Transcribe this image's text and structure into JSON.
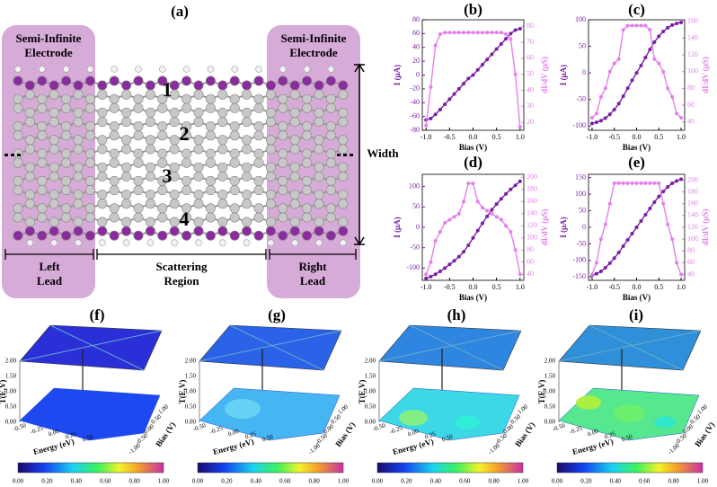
{
  "diagram": {
    "label": "(a)",
    "left_electrode": [
      "Semi-Infinite",
      "Electrode"
    ],
    "right_electrode": [
      "Semi-Infinite",
      "Electrode"
    ],
    "regions": [
      "1",
      "2",
      "3",
      "4"
    ],
    "width": "Width",
    "left_lead": [
      "Left",
      "Lead"
    ],
    "scattering": [
      "Scattering",
      "Region"
    ],
    "right_lead": [
      "Right",
      "Lead"
    ]
  },
  "chart_data": [
    {
      "type": "line",
      "title": "(b)",
      "x_label": "Bias (V)",
      "y_label": "I (μA)",
      "y2_label": "dI/dV (μS)",
      "x": [
        -1,
        -0.9,
        -0.8,
        -0.7,
        -0.6,
        -0.5,
        -0.4,
        -0.3,
        -0.2,
        -0.1,
        0,
        0.1,
        0.2,
        0.3,
        0.4,
        0.5,
        0.6,
        0.7,
        0.8,
        0.9,
        1
      ],
      "xlim": [
        -1.08,
        1.08
      ],
      "xticks": [
        {
          "value": -1,
          "label": "-1.0"
        },
        -0.5,
        {
          "value": 0,
          "label": "0.0"
        },
        0.5,
        {
          "value": 1,
          "label": "1.0"
        }
      ],
      "ylim": [
        -80,
        80
      ],
      "yticks": [
        -80,
        -60,
        -40,
        -20,
        0,
        20,
        40,
        60,
        80
      ],
      "y2lim": [
        15,
        84
      ],
      "y2ticks": [
        20,
        30,
        40,
        50,
        60,
        70,
        80
      ],
      "series": [
        {
          "color": "#7a1fa2",
          "values": [
            -65,
            -63,
            -57,
            -50,
            -42.5,
            -35,
            -27.5,
            -20,
            -12.5,
            -5,
            0,
            7.5,
            15,
            22.5,
            30,
            37.5,
            45,
            52.5,
            60,
            65,
            67
          ]
        },
        {
          "color": "#e480ea",
          "axis": "y2",
          "values": [
            18,
            42,
            68,
            75,
            76,
            76,
            76,
            76,
            76,
            76,
            76,
            76,
            76,
            76,
            76,
            76,
            76,
            75,
            72,
            50,
            17
          ]
        }
      ]
    },
    {
      "type": "line",
      "title": "(c)",
      "x_label": "Bias (V)",
      "y_label": "I (μA)",
      "y2_label": "dI/dV (μS)",
      "x": [
        -1,
        -0.9,
        -0.8,
        -0.7,
        -0.6,
        -0.5,
        -0.4,
        -0.3,
        -0.2,
        -0.1,
        0,
        0.1,
        0.2,
        0.3,
        0.4,
        0.5,
        0.6,
        0.7,
        0.8,
        0.9,
        1
      ],
      "xlim": [
        -1.08,
        1.08
      ],
      "xticks": [
        {
          "value": -1,
          "label": "-1.0"
        },
        -0.5,
        {
          "value": 0,
          "label": "0.0"
        },
        0.5,
        {
          "value": 1,
          "label": "1.0"
        }
      ],
      "ylim": [
        -108,
        100
      ],
      "yticks": [
        -100,
        -50,
        0,
        50,
        100
      ],
      "y2lim": [
        30,
        162
      ],
      "y2ticks": [
        40,
        60,
        80,
        100,
        120,
        140,
        160
      ],
      "series": [
        {
          "color": "#7a1fa2",
          "values": [
            -95,
            -93,
            -90,
            -85,
            -78,
            -69,
            -58,
            -44,
            -29,
            -14,
            0,
            14,
            29,
            44,
            58,
            69,
            78,
            85,
            90,
            93,
            95
          ]
        },
        {
          "color": "#e480ea",
          "axis": "y2",
          "values": [
            45,
            50,
            70,
            80,
            100,
            110,
            115,
            150,
            155,
            155,
            155,
            155,
            155,
            150,
            115,
            110,
            100,
            80,
            70,
            50,
            45
          ]
        }
      ]
    },
    {
      "type": "line",
      "title": "(d)",
      "x_label": "Bias (V)",
      "y_label": "I (μA)",
      "y2_label": "dI/dV (μS)",
      "x": [
        -1,
        -0.9,
        -0.8,
        -0.7,
        -0.6,
        -0.5,
        -0.4,
        -0.3,
        -0.2,
        -0.1,
        0,
        0.1,
        0.2,
        0.3,
        0.4,
        0.5,
        0.6,
        0.7,
        0.8,
        0.9,
        1
      ],
      "xlim": [
        -1.08,
        1.08
      ],
      "xticks": [
        {
          "value": -1,
          "label": "-1.0"
        },
        -0.5,
        {
          "value": 0,
          "label": "0.0"
        },
        0.5,
        {
          "value": 1,
          "label": "1.0"
        }
      ],
      "ylim": [
        -130,
        130
      ],
      "yticks": [
        -100,
        -50,
        0,
        50,
        100
      ],
      "y2lim": [
        30,
        205
      ],
      "y2ticks": [
        40,
        60,
        80,
        100,
        120,
        140,
        160,
        180,
        200
      ],
      "series": [
        {
          "color": "#7a1fa2",
          "values": [
            -125,
            -121,
            -115,
            -108,
            -100,
            -91,
            -82,
            -72,
            -60,
            -44,
            -26,
            -8,
            10,
            27,
            43,
            57,
            70,
            82,
            93,
            103,
            113
          ]
        },
        {
          "color": "#e480ea",
          "axis": "y2",
          "values": [
            40,
            60,
            95,
            110,
            125,
            130,
            135,
            140,
            160,
            190,
            190,
            160,
            150,
            145,
            140,
            135,
            130,
            120,
            110,
            80,
            40
          ]
        }
      ]
    },
    {
      "type": "line",
      "title": "(e)",
      "x_label": "Bias (V)",
      "y_label": "I (μA)",
      "y2_label": "dI/dV (μS)",
      "x": [
        -1,
        -0.9,
        -0.8,
        -0.7,
        -0.6,
        -0.5,
        -0.4,
        -0.3,
        -0.2,
        -0.1,
        0,
        0.1,
        0.2,
        0.3,
        0.4,
        0.5,
        0.6,
        0.7,
        0.8,
        0.9,
        1
      ],
      "xlim": [
        -1.08,
        1.08
      ],
      "xticks": [
        {
          "value": -1,
          "label": "-1.0"
        },
        -0.5,
        {
          "value": 0,
          "label": "0.0"
        },
        0.5,
        {
          "value": 1,
          "label": "1.0"
        }
      ],
      "ylim": [
        -160,
        160
      ],
      "yticks": [
        -150,
        -100,
        -50,
        0,
        50,
        100,
        150
      ],
      "y2lim": [
        30,
        210
      ],
      "y2ticks": [
        40,
        60,
        80,
        100,
        120,
        140,
        160,
        180,
        200
      ],
      "series": [
        {
          "color": "#7a1fa2",
          "values": [
            -145,
            -140,
            -133,
            -122,
            -108,
            -93,
            -76,
            -57,
            -38,
            -19,
            0,
            19,
            38,
            57,
            76,
            93,
            108,
            122,
            133,
            140,
            145
          ]
        },
        {
          "color": "#e480ea",
          "axis": "y2",
          "values": [
            40,
            60,
            100,
            125,
            160,
            195,
            195,
            195,
            195,
            195,
            195,
            195,
            195,
            195,
            195,
            195,
            160,
            125,
            100,
            60,
            40
          ]
        }
      ]
    }
  ],
  "surface_axes": {
    "z_label": "T(E,V)",
    "z_ticks": [
      "0.00",
      "0.50",
      "1.00",
      "1.50",
      "2.00"
    ],
    "energy_label": "Energy (eV)",
    "energy_ticks": [
      "-0.50",
      "-0.25",
      "0.00",
      "0.25",
      "0.50"
    ],
    "bias_label": "Bias (V)",
    "bias_ticks": [
      "-1.00",
      "-0.50",
      "0.00",
      "0.50",
      "1.00"
    ],
    "colorbar_ticks": [
      "0.00",
      "0.20",
      "0.40",
      "0.60",
      "0.80",
      "1.00"
    ]
  },
  "surface_panels": [
    {
      "label": "(f)"
    },
    {
      "label": "(g)"
    },
    {
      "label": "(h)"
    },
    {
      "label": "(i)"
    }
  ]
}
